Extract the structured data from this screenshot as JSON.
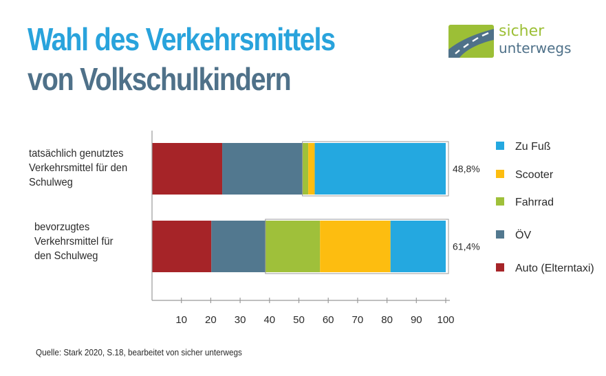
{
  "title_line1": "Wahl des Verkehrsmittels",
  "title_line2": "von Volkschulkindern",
  "logo": {
    "line1": "sicher",
    "line2": "unterwegs",
    "icon": "road-icon",
    "colors": {
      "green": "#9cbf36",
      "slate": "#4f7189"
    }
  },
  "source": "Quelle: Stark 2020,  S.18, bearbeitet von sicher unterwegs",
  "chart_data": {
    "type": "bar",
    "orientation": "horizontal",
    "stacked": true,
    "categories": [
      "tatsächlich genutztes Verkehrsmittel für den Schulweg",
      "bevorzugtes Verkehrsmittel für den Schulweg"
    ],
    "category_lines": [
      [
        "tatsächlich genutztes",
        "Verkehrsmittel für den",
        "Schulweg"
      ],
      [
        "bevorzugtes",
        "Verkehrsmittel für",
        "den Schulweg"
      ]
    ],
    "series": [
      {
        "name": "Auto (Elterntaxi)",
        "color": "#a62428",
        "values": [
          23.9,
          20.2
        ]
      },
      {
        "name": "ÖV",
        "color": "#52788f",
        "values": [
          27.3,
          18.4
        ]
      },
      {
        "name": "Fahrrad",
        "color": "#9fc03a",
        "values": [
          2.0,
          18.6
        ]
      },
      {
        "name": "Scooter",
        "color": "#fdbd10",
        "values": [
          2.2,
          24.0
        ]
      },
      {
        "name": "Zu Fuß",
        "color": "#24a8e0",
        "values": [
          44.6,
          18.8
        ]
      }
    ],
    "legend_order": [
      "Zu Fuß",
      "Scooter",
      "Fahrrad",
      "ÖV",
      "Auto (Elterntaxi)"
    ],
    "legend_position": "right",
    "annotations": [
      {
        "category_index": 0,
        "text": "48,8%",
        "from": 51.2,
        "to": 100
      },
      {
        "category_index": 1,
        "text": "61,4%",
        "from": 38.6,
        "to": 100
      }
    ],
    "xticks": [
      10,
      20,
      30,
      40,
      50,
      60,
      70,
      80,
      90,
      100
    ],
    "xlim": [
      0,
      100
    ],
    "xlabel": "",
    "ylabel": "",
    "grid": false
  }
}
